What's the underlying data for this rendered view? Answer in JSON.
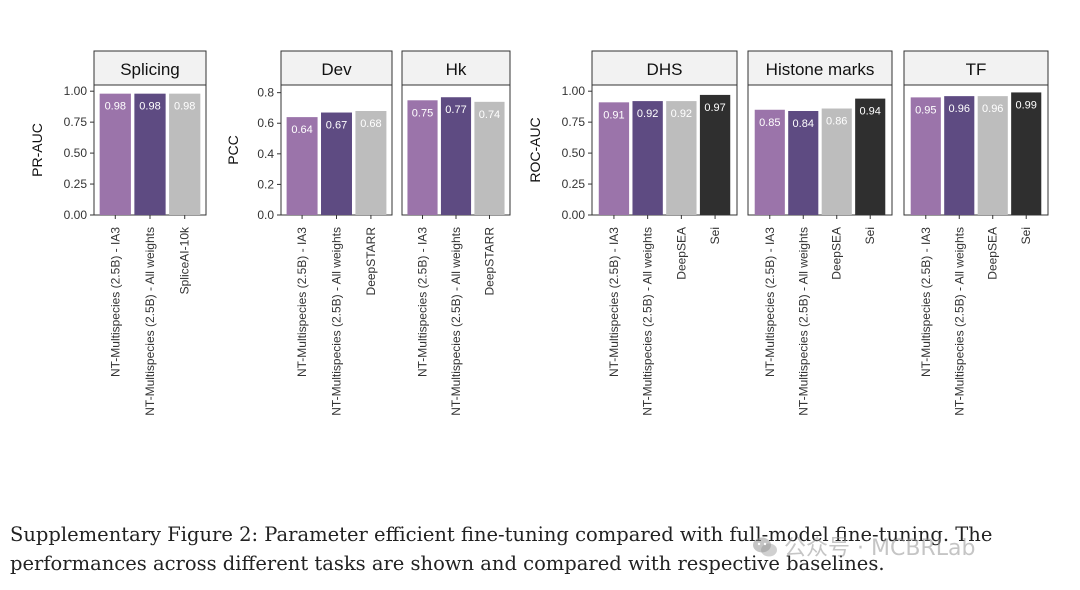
{
  "colors": {
    "ia3": "#9b74aa",
    "allw": "#5e4b82",
    "baseline": "#bdbdbd",
    "sei": "#2f2f2f",
    "strip_bg": "#f2f2f2",
    "axis": "#333333"
  },
  "chart_data": [
    {
      "type": "bar",
      "ylabel": "PR-AUC",
      "ylim": [
        0,
        1.05
      ],
      "yticks": [
        "0.00",
        "0.25",
        "0.50",
        "0.75",
        "1.00"
      ],
      "ytick_values": [
        0,
        0.25,
        0.5,
        0.75,
        1.0
      ],
      "panels": [
        {
          "title": "Splicing",
          "categories": [
            "NT-Multispecies (2.5B) - IA3",
            "NT-Multispecies (2.5B) - All weights",
            "SpliceAI-10k"
          ],
          "values": [
            0.98,
            0.98,
            0.98
          ],
          "labels": [
            "0.98",
            "0.98",
            "0.98"
          ],
          "colors": [
            "ia3",
            "allw",
            "baseline"
          ]
        }
      ]
    },
    {
      "type": "bar",
      "ylabel": "PCC",
      "ylim": [
        0,
        0.85
      ],
      "yticks": [
        "0.0",
        "0.2",
        "0.4",
        "0.6",
        "0.8"
      ],
      "ytick_values": [
        0,
        0.2,
        0.4,
        0.6,
        0.8
      ],
      "panels": [
        {
          "title": "Dev",
          "categories": [
            "NT-Multispecies (2.5B) - IA3",
            "NT-Multispecies (2.5B) - All weights",
            "DeepSTARR"
          ],
          "values": [
            0.64,
            0.67,
            0.68
          ],
          "labels": [
            "0.64",
            "0.67",
            "0.68"
          ],
          "colors": [
            "ia3",
            "allw",
            "baseline"
          ]
        },
        {
          "title": "Hk",
          "categories": [
            "NT-Multispecies (2.5B) - IA3",
            "NT-Multispecies (2.5B) - All weights",
            "DeepSTARR"
          ],
          "values": [
            0.75,
            0.77,
            0.74
          ],
          "labels": [
            "0.75",
            "0.77",
            "0.74"
          ],
          "colors": [
            "ia3",
            "allw",
            "baseline"
          ]
        }
      ]
    },
    {
      "type": "bar",
      "ylabel": "ROC-AUC",
      "ylim": [
        0,
        1.05
      ],
      "yticks": [
        "0.00",
        "0.25",
        "0.50",
        "0.75",
        "1.00"
      ],
      "ytick_values": [
        0,
        0.25,
        0.5,
        0.75,
        1.0
      ],
      "panels": [
        {
          "title": "DHS",
          "categories": [
            "NT-Multispecies (2.5B) - IA3",
            "NT-Multispecies (2.5B) - All weights",
            "DeepSEA",
            "Sei"
          ],
          "values": [
            0.91,
            0.92,
            0.92,
            0.97
          ],
          "labels": [
            "0.91",
            "0.92",
            "0.92",
            "0.97"
          ],
          "colors": [
            "ia3",
            "allw",
            "baseline",
            "sei"
          ]
        },
        {
          "title": "Histone marks",
          "categories": [
            "NT-Multispecies (2.5B) - IA3",
            "NT-Multispecies (2.5B) - All weights",
            "DeepSEA",
            "Sei"
          ],
          "values": [
            0.85,
            0.84,
            0.86,
            0.94
          ],
          "labels": [
            "0.85",
            "0.84",
            "0.86",
            "0.94"
          ],
          "colors": [
            "ia3",
            "allw",
            "baseline",
            "sei"
          ]
        },
        {
          "title": "TF",
          "categories": [
            "NT-Multispecies (2.5B) - IA3",
            "NT-Multispecies (2.5B) - All weights",
            "DeepSEA",
            "Sei"
          ],
          "values": [
            0.95,
            0.96,
            0.96,
            0.99
          ],
          "labels": [
            "0.95",
            "0.96",
            "0.96",
            "0.99"
          ],
          "colors": [
            "ia3",
            "allw",
            "baseline",
            "sei"
          ]
        }
      ]
    }
  ],
  "caption": {
    "line1": "Supplementary Figure 2: Parameter efficient fine-tuning compared with full-model fine-tuning. The",
    "line2": "performances across different tasks are shown and compared with respective baselines."
  },
  "watermark": {
    "text": "公众号 · MCBRLab",
    "icon": "wechat-icon"
  }
}
